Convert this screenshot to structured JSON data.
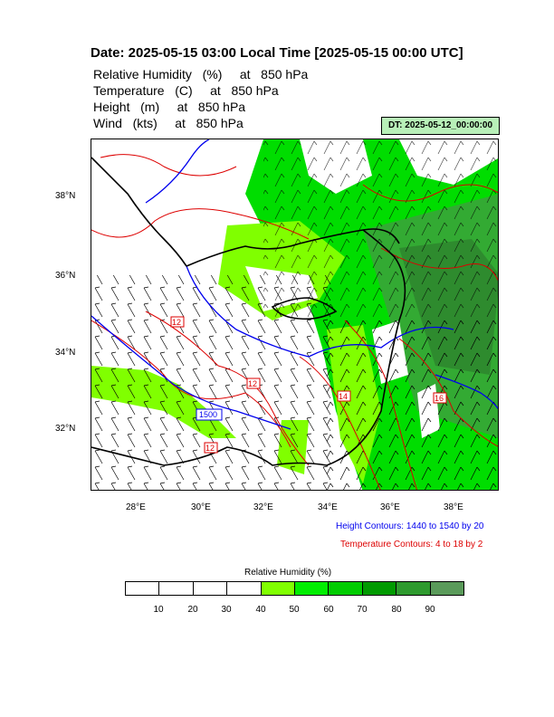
{
  "header": {
    "title": "Date: 2025-05-15  03:00 Local Time [2025-05-15  00:00 UTC]",
    "fields": [
      "Relative Humidity   (%)     at   850 hPa",
      "Temperature   (C)     at   850 hPa",
      "Height   (m)     at   850 hPa",
      "Wind   (kts)     at   850 hPa"
    ],
    "dt_badge": "DT: 2025-05-12_00:00:00"
  },
  "map": {
    "lat_labels": [
      "38°N",
      "36°N",
      "34°N",
      "32°N"
    ],
    "lon_labels": [
      "28°E",
      "30°E",
      "32°E",
      "34°E",
      "36°E",
      "38°E"
    ],
    "contour_labels": [
      "1500",
      "12",
      "12",
      "12",
      "14",
      "16"
    ]
  },
  "legend": {
    "height_note": "Height Contours: 1440 to 1540 by 20",
    "temp_note": "Temperature Contours: 4 to 18 by 2",
    "colorbar_title": "Relative Humidity  (%)",
    "colorbar_labels": [
      "10",
      "20",
      "30",
      "40",
      "50",
      "60",
      "70",
      "80",
      "90"
    ],
    "colorbar_colors": [
      "#ffffff",
      "#ffffff",
      "#ffffff",
      "#ffffff",
      "#80ff00",
      "#00ee00",
      "#00cc00",
      "#009a00",
      "#2e9a2e",
      "#5a9a5a"
    ]
  },
  "colors": {
    "height_contour": "#0000ee",
    "temp_contour": "#dd0000",
    "coastline": "#000000",
    "rh_low": "#80ff00",
    "rh_mid": "#00dd00",
    "rh_high": "#2e8b2e"
  }
}
